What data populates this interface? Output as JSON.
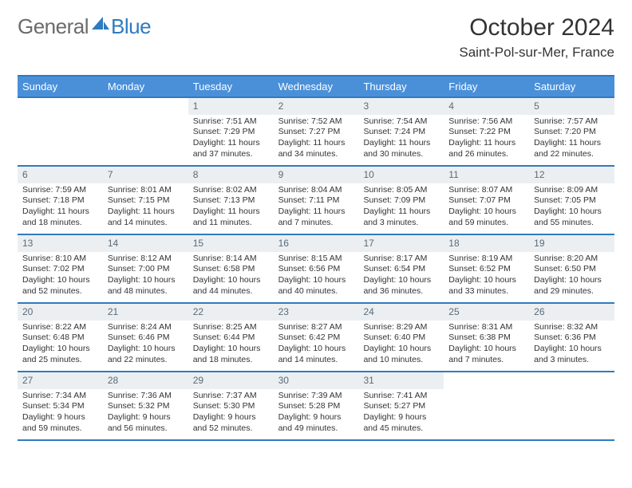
{
  "logo": {
    "text1": "General",
    "text2": "Blue"
  },
  "title": "October 2024",
  "location": "Saint-Pol-sur-Mer, France",
  "colors": {
    "header_bg": "#4a90d9",
    "header_border": "#2f7bbf",
    "daynum_bg": "#eceff1",
    "daynum_color": "#5a6a78",
    "text": "#333333",
    "logo_gray": "#6b6b6b",
    "logo_blue": "#2f7bbf",
    "background": "#ffffff"
  },
  "typography": {
    "title_fontsize": 30,
    "location_fontsize": 17,
    "logo_fontsize": 26,
    "weekday_fontsize": 13,
    "daynum_fontsize": 12,
    "cell_fontsize": 10.5
  },
  "weekdays": [
    "Sunday",
    "Monday",
    "Tuesday",
    "Wednesday",
    "Thursday",
    "Friday",
    "Saturday"
  ],
  "weeks": [
    [
      {
        "empty": true
      },
      {
        "empty": true
      },
      {
        "n": "1",
        "sunrise": "Sunrise: 7:51 AM",
        "sunset": "Sunset: 7:29 PM",
        "day1": "Daylight: 11 hours",
        "day2": "and 37 minutes."
      },
      {
        "n": "2",
        "sunrise": "Sunrise: 7:52 AM",
        "sunset": "Sunset: 7:27 PM",
        "day1": "Daylight: 11 hours",
        "day2": "and 34 minutes."
      },
      {
        "n": "3",
        "sunrise": "Sunrise: 7:54 AM",
        "sunset": "Sunset: 7:24 PM",
        "day1": "Daylight: 11 hours",
        "day2": "and 30 minutes."
      },
      {
        "n": "4",
        "sunrise": "Sunrise: 7:56 AM",
        "sunset": "Sunset: 7:22 PM",
        "day1": "Daylight: 11 hours",
        "day2": "and 26 minutes."
      },
      {
        "n": "5",
        "sunrise": "Sunrise: 7:57 AM",
        "sunset": "Sunset: 7:20 PM",
        "day1": "Daylight: 11 hours",
        "day2": "and 22 minutes."
      }
    ],
    [
      {
        "n": "6",
        "sunrise": "Sunrise: 7:59 AM",
        "sunset": "Sunset: 7:18 PM",
        "day1": "Daylight: 11 hours",
        "day2": "and 18 minutes."
      },
      {
        "n": "7",
        "sunrise": "Sunrise: 8:01 AM",
        "sunset": "Sunset: 7:15 PM",
        "day1": "Daylight: 11 hours",
        "day2": "and 14 minutes."
      },
      {
        "n": "8",
        "sunrise": "Sunrise: 8:02 AM",
        "sunset": "Sunset: 7:13 PM",
        "day1": "Daylight: 11 hours",
        "day2": "and 11 minutes."
      },
      {
        "n": "9",
        "sunrise": "Sunrise: 8:04 AM",
        "sunset": "Sunset: 7:11 PM",
        "day1": "Daylight: 11 hours",
        "day2": "and 7 minutes."
      },
      {
        "n": "10",
        "sunrise": "Sunrise: 8:05 AM",
        "sunset": "Sunset: 7:09 PM",
        "day1": "Daylight: 11 hours",
        "day2": "and 3 minutes."
      },
      {
        "n": "11",
        "sunrise": "Sunrise: 8:07 AM",
        "sunset": "Sunset: 7:07 PM",
        "day1": "Daylight: 10 hours",
        "day2": "and 59 minutes."
      },
      {
        "n": "12",
        "sunrise": "Sunrise: 8:09 AM",
        "sunset": "Sunset: 7:05 PM",
        "day1": "Daylight: 10 hours",
        "day2": "and 55 minutes."
      }
    ],
    [
      {
        "n": "13",
        "sunrise": "Sunrise: 8:10 AM",
        "sunset": "Sunset: 7:02 PM",
        "day1": "Daylight: 10 hours",
        "day2": "and 52 minutes."
      },
      {
        "n": "14",
        "sunrise": "Sunrise: 8:12 AM",
        "sunset": "Sunset: 7:00 PM",
        "day1": "Daylight: 10 hours",
        "day2": "and 48 minutes."
      },
      {
        "n": "15",
        "sunrise": "Sunrise: 8:14 AM",
        "sunset": "Sunset: 6:58 PM",
        "day1": "Daylight: 10 hours",
        "day2": "and 44 minutes."
      },
      {
        "n": "16",
        "sunrise": "Sunrise: 8:15 AM",
        "sunset": "Sunset: 6:56 PM",
        "day1": "Daylight: 10 hours",
        "day2": "and 40 minutes."
      },
      {
        "n": "17",
        "sunrise": "Sunrise: 8:17 AM",
        "sunset": "Sunset: 6:54 PM",
        "day1": "Daylight: 10 hours",
        "day2": "and 36 minutes."
      },
      {
        "n": "18",
        "sunrise": "Sunrise: 8:19 AM",
        "sunset": "Sunset: 6:52 PM",
        "day1": "Daylight: 10 hours",
        "day2": "and 33 minutes."
      },
      {
        "n": "19",
        "sunrise": "Sunrise: 8:20 AM",
        "sunset": "Sunset: 6:50 PM",
        "day1": "Daylight: 10 hours",
        "day2": "and 29 minutes."
      }
    ],
    [
      {
        "n": "20",
        "sunrise": "Sunrise: 8:22 AM",
        "sunset": "Sunset: 6:48 PM",
        "day1": "Daylight: 10 hours",
        "day2": "and 25 minutes."
      },
      {
        "n": "21",
        "sunrise": "Sunrise: 8:24 AM",
        "sunset": "Sunset: 6:46 PM",
        "day1": "Daylight: 10 hours",
        "day2": "and 22 minutes."
      },
      {
        "n": "22",
        "sunrise": "Sunrise: 8:25 AM",
        "sunset": "Sunset: 6:44 PM",
        "day1": "Daylight: 10 hours",
        "day2": "and 18 minutes."
      },
      {
        "n": "23",
        "sunrise": "Sunrise: 8:27 AM",
        "sunset": "Sunset: 6:42 PM",
        "day1": "Daylight: 10 hours",
        "day2": "and 14 minutes."
      },
      {
        "n": "24",
        "sunrise": "Sunrise: 8:29 AM",
        "sunset": "Sunset: 6:40 PM",
        "day1": "Daylight: 10 hours",
        "day2": "and 10 minutes."
      },
      {
        "n": "25",
        "sunrise": "Sunrise: 8:31 AM",
        "sunset": "Sunset: 6:38 PM",
        "day1": "Daylight: 10 hours",
        "day2": "and 7 minutes."
      },
      {
        "n": "26",
        "sunrise": "Sunrise: 8:32 AM",
        "sunset": "Sunset: 6:36 PM",
        "day1": "Daylight: 10 hours",
        "day2": "and 3 minutes."
      }
    ],
    [
      {
        "n": "27",
        "sunrise": "Sunrise: 7:34 AM",
        "sunset": "Sunset: 5:34 PM",
        "day1": "Daylight: 9 hours",
        "day2": "and 59 minutes."
      },
      {
        "n": "28",
        "sunrise": "Sunrise: 7:36 AM",
        "sunset": "Sunset: 5:32 PM",
        "day1": "Daylight: 9 hours",
        "day2": "and 56 minutes."
      },
      {
        "n": "29",
        "sunrise": "Sunrise: 7:37 AM",
        "sunset": "Sunset: 5:30 PM",
        "day1": "Daylight: 9 hours",
        "day2": "and 52 minutes."
      },
      {
        "n": "30",
        "sunrise": "Sunrise: 7:39 AM",
        "sunset": "Sunset: 5:28 PM",
        "day1": "Daylight: 9 hours",
        "day2": "and 49 minutes."
      },
      {
        "n": "31",
        "sunrise": "Sunrise: 7:41 AM",
        "sunset": "Sunset: 5:27 PM",
        "day1": "Daylight: 9 hours",
        "day2": "and 45 minutes."
      },
      {
        "empty": true
      },
      {
        "empty": true
      }
    ]
  ]
}
